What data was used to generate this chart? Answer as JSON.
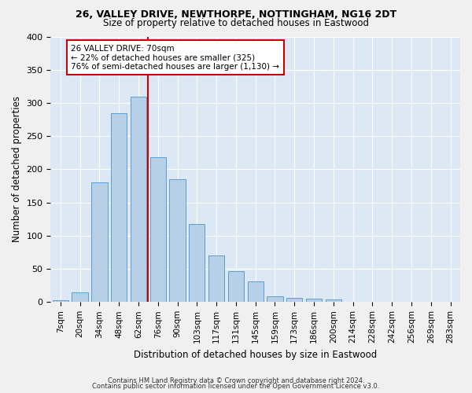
{
  "title1": "26, VALLEY DRIVE, NEWTHORPE, NOTTINGHAM, NG16 2DT",
  "title2": "Size of property relative to detached houses in Eastwood",
  "xlabel": "Distribution of detached houses by size in Eastwood",
  "ylabel": "Number of detached properties",
  "bar_values": [
    3,
    15,
    180,
    285,
    310,
    218,
    185,
    118,
    70,
    46,
    31,
    9,
    6,
    5,
    4,
    0,
    0,
    0,
    0,
    0,
    0
  ],
  "bar_labels": [
    "7sqm",
    "20sqm",
    "34sqm",
    "48sqm",
    "62sqm",
    "76sqm",
    "90sqm",
    "103sqm",
    "117sqm",
    "131sqm",
    "145sqm",
    "159sqm",
    "173sqm",
    "186sqm",
    "200sqm",
    "214sqm",
    "228sqm",
    "242sqm",
    "256sqm",
    "269sqm",
    "283sqm"
  ],
  "bar_color": "#b8cfe8",
  "bar_edge_color": "#5a9fd4",
  "background_color": "#dde8f5",
  "grid_color": "#ffffff",
  "annotation_line1": "26 VALLEY DRIVE: 70sqm",
  "annotation_line2": "← 22% of detached houses are smaller (325)",
  "annotation_line3": "76% of semi-detached houses are larger (1,130) →",
  "annotation_box_color": "#ffffff",
  "annotation_box_edge_color": "#cc0000",
  "vline_color": "#cc0000",
  "vline_x_index": 5,
  "ylim": [
    0,
    400
  ],
  "yticks": [
    0,
    50,
    100,
    150,
    200,
    250,
    300,
    350,
    400
  ],
  "footer1": "Contains HM Land Registry data © Crown copyright and database right 2024.",
  "footer2": "Contains public sector information licensed under the Open Government Licence v3.0.",
  "fig_width": 6.0,
  "fig_height": 5.0,
  "dpi": 100
}
